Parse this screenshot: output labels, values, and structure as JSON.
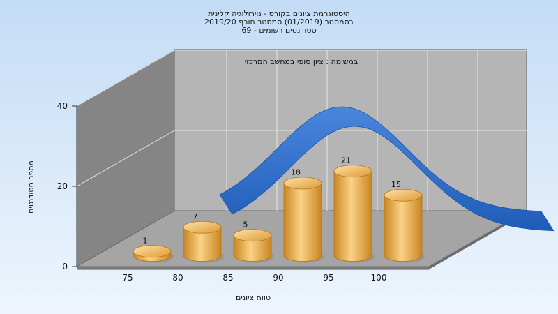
{
  "chart_data": {
    "type": "bar",
    "title_lines": [
      "היסטוגרמת ציונים בקורס - נוירולוגיה קלינית",
      "בסמסטר  (01/2019)  סמסטר חורף 2019/20",
      "סטודנטים רשומים - 69"
    ],
    "annotation": "במשימה : ציון סופי במחשב המרכזי",
    "xlabel": "טווח ציונים",
    "ylabel": "מספר סטודנטים",
    "x_ticks": [
      "75",
      "80",
      "85",
      "90",
      "95",
      "100"
    ],
    "y_ticks": [
      "0",
      "20",
      "40"
    ],
    "ylim": [
      0,
      40
    ],
    "bars": [
      {
        "x": 75,
        "value": 1,
        "label": "1"
      },
      {
        "x": 80,
        "value": 7,
        "label": "7"
      },
      {
        "x": 85,
        "value": 5,
        "label": "5"
      },
      {
        "x": 90,
        "value": 18,
        "label": "18"
      },
      {
        "x": 95,
        "value": 21,
        "label": "21"
      },
      {
        "x": 100,
        "value": 15,
        "label": "15"
      }
    ],
    "curve": {
      "type": "normal-distribution",
      "color": "#2f6fc9"
    },
    "colors": {
      "background_top": "#c3dcf6",
      "background_bottom": "#eef5fd",
      "back_wall": "#b5b5b5",
      "side_wall": "#858585",
      "floor": "#a5a5a5",
      "bar_light": "#fbd286",
      "bar_dark": "#c98622"
    }
  }
}
